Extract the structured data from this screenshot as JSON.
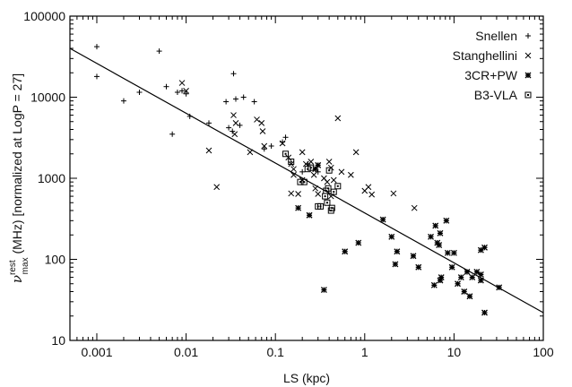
{
  "chart_data": {
    "type": "scatter",
    "x_scale": "log",
    "y_scale": "log",
    "xlim": [
      0.0005,
      100
    ],
    "ylim": [
      10,
      100000
    ],
    "grid": false,
    "legend_position": "top-right",
    "xlabel": "LS (kpc)",
    "ylabel": {
      "nu": "ν",
      "superscript": "rest",
      "subscript": "max",
      "text": " (MHz) [normalized at LogP = 27]"
    },
    "x_ticks": [
      {
        "value": 0.001,
        "label": "0.001"
      },
      {
        "value": 0.01,
        "label": "0.01"
      },
      {
        "value": 0.1,
        "label": "0.1"
      },
      {
        "value": 1,
        "label": "1"
      },
      {
        "value": 10,
        "label": "10"
      },
      {
        "value": 100,
        "label": "100"
      }
    ],
    "y_ticks": [
      {
        "value": 10,
        "label": "10"
      },
      {
        "value": 100,
        "label": "100"
      },
      {
        "value": 1000,
        "label": "1000"
      },
      {
        "value": 10000,
        "label": "10000"
      },
      {
        "value": 100000,
        "label": "100000"
      }
    ],
    "fit_line": {
      "x": [
        0.0005,
        100
      ],
      "y": [
        40000,
        22
      ]
    },
    "series": [
      {
        "name": "Snellen",
        "marker": "plus",
        "points": [
          [
            0.001,
            42000
          ],
          [
            0.001,
            18000
          ],
          [
            0.002,
            9000
          ],
          [
            0.003,
            11500
          ],
          [
            0.005,
            37000
          ],
          [
            0.006,
            13500
          ],
          [
            0.007,
            3500
          ],
          [
            0.008,
            11500
          ],
          [
            0.009,
            12000
          ],
          [
            0.01,
            11000
          ],
          [
            0.011,
            5800
          ],
          [
            0.018,
            4800
          ],
          [
            0.028,
            8800
          ],
          [
            0.034,
            19500
          ],
          [
            0.036,
            9500
          ],
          [
            0.04,
            4500
          ],
          [
            0.044,
            10000
          ],
          [
            0.058,
            8800
          ],
          [
            0.03,
            4200
          ],
          [
            0.033,
            3800
          ],
          [
            0.075,
            2300
          ],
          [
            0.09,
            2500
          ],
          [
            0.13,
            3200
          ],
          [
            0.12,
            2800
          ],
          [
            0.2,
            1200
          ],
          [
            0.23,
            1500
          ],
          [
            0.3,
            1200
          ]
        ]
      },
      {
        "name": "Stanghellini",
        "marker": "cross",
        "points": [
          [
            0.009,
            15000
          ],
          [
            0.01,
            12000
          ],
          [
            0.018,
            2200
          ],
          [
            0.022,
            780
          ],
          [
            0.034,
            6000
          ],
          [
            0.036,
            4800
          ],
          [
            0.035,
            3500
          ],
          [
            0.052,
            2100
          ],
          [
            0.062,
            5300
          ],
          [
            0.07,
            4800
          ],
          [
            0.072,
            3800
          ],
          [
            0.075,
            2500
          ],
          [
            0.12,
            2700
          ],
          [
            0.14,
            1800
          ],
          [
            0.15,
            1500
          ],
          [
            0.16,
            1300
          ],
          [
            0.16,
            1100
          ],
          [
            0.15,
            650
          ],
          [
            0.18,
            640
          ],
          [
            0.2,
            2100
          ],
          [
            0.2,
            950
          ],
          [
            0.22,
            1500
          ],
          [
            0.25,
            1600
          ],
          [
            0.27,
            1100
          ],
          [
            0.28,
            750
          ],
          [
            0.3,
            640
          ],
          [
            0.35,
            1000
          ],
          [
            0.38,
            900
          ],
          [
            0.4,
            1600
          ],
          [
            0.42,
            1350
          ],
          [
            0.45,
            950
          ],
          [
            0.5,
            5500
          ],
          [
            0.42,
            600
          ],
          [
            0.55,
            1200
          ],
          [
            0.7,
            1100
          ],
          [
            0.8,
            2100
          ],
          [
            1.0,
            700
          ],
          [
            1.1,
            780
          ],
          [
            1.2,
            630
          ],
          [
            2.1,
            650
          ],
          [
            3.6,
            430
          ]
        ]
      },
      {
        "name": "3CR+PW",
        "marker": "star",
        "points": [
          [
            0.18,
            430
          ],
          [
            0.24,
            350
          ],
          [
            0.28,
            1300
          ],
          [
            0.3,
            1450
          ],
          [
            0.35,
            42
          ],
          [
            0.6,
            125
          ],
          [
            0.85,
            160
          ],
          [
            1.6,
            310
          ],
          [
            2.0,
            190
          ],
          [
            2.3,
            125
          ],
          [
            2.2,
            87
          ],
          [
            3.5,
            110
          ],
          [
            4.0,
            80
          ],
          [
            5.5,
            190
          ],
          [
            6.2,
            260
          ],
          [
            6.5,
            160
          ],
          [
            7.0,
            210
          ],
          [
            6.8,
            150
          ],
          [
            8.2,
            300
          ],
          [
            7.2,
            60
          ],
          [
            6.0,
            48
          ],
          [
            8.5,
            120
          ],
          [
            10.0,
            120
          ],
          [
            7.0,
            55
          ],
          [
            9.5,
            80
          ],
          [
            12.0,
            60
          ],
          [
            14.0,
            70
          ],
          [
            18.0,
            70
          ],
          [
            16.0,
            60
          ],
          [
            15.0,
            35
          ],
          [
            20.0,
            55
          ],
          [
            20.0,
            65
          ],
          [
            20.0,
            130
          ],
          [
            22.0,
            140
          ],
          [
            22.0,
            22
          ],
          [
            32.0,
            45
          ],
          [
            11.0,
            50
          ],
          [
            13.0,
            40
          ]
        ]
      },
      {
        "name": "B3-VLA",
        "marker": "square",
        "points": [
          [
            0.13,
            2000
          ],
          [
            0.15,
            1600
          ],
          [
            0.19,
            900
          ],
          [
            0.21,
            900
          ],
          [
            0.23,
            1300
          ],
          [
            0.25,
            1350
          ],
          [
            0.3,
            450
          ],
          [
            0.32,
            450
          ],
          [
            0.36,
            600
          ],
          [
            0.37,
            700
          ],
          [
            0.38,
            500
          ],
          [
            0.39,
            750
          ],
          [
            0.4,
            1250
          ],
          [
            0.42,
            400
          ],
          [
            0.43,
            430
          ],
          [
            0.45,
            680
          ],
          [
            0.5,
            800
          ]
        ]
      }
    ]
  }
}
